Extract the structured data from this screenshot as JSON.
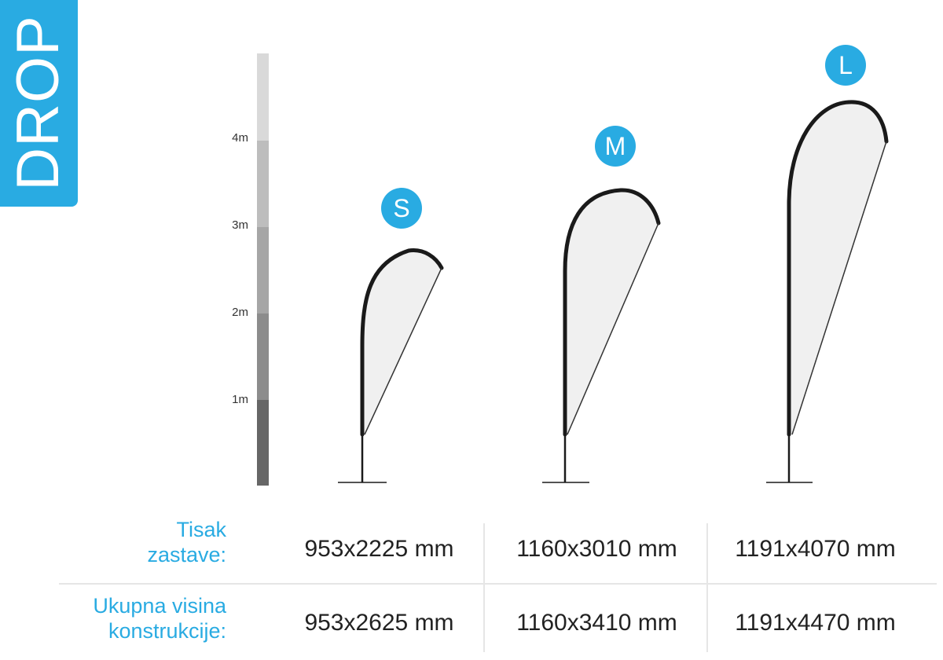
{
  "tab": {
    "title": "DROP"
  },
  "scale": {
    "ticks": [
      "4m",
      "3m",
      "2m",
      "1m"
    ],
    "segment_colors": [
      "#d9d9d9",
      "#bdbdbd",
      "#a6a6a6",
      "#8c8c8c",
      "#666666"
    ]
  },
  "badges": [
    "S",
    "M",
    "L"
  ],
  "colors": {
    "accent": "#29abe2",
    "outline": "#1a1a1a",
    "flag_fill": "#f0f0f0"
  },
  "table": {
    "rows": [
      {
        "label_line1": "Tisak",
        "label_line2": "zastave:",
        "values": [
          "953x2225 mm",
          "1160x3010 mm",
          "1191x4070 mm"
        ]
      },
      {
        "label_line1": "Ukupna visina",
        "label_line2": "konstrukcije:",
        "values": [
          "953x2625 mm",
          "1160x3410 mm",
          "1191x4470 mm"
        ]
      }
    ]
  }
}
